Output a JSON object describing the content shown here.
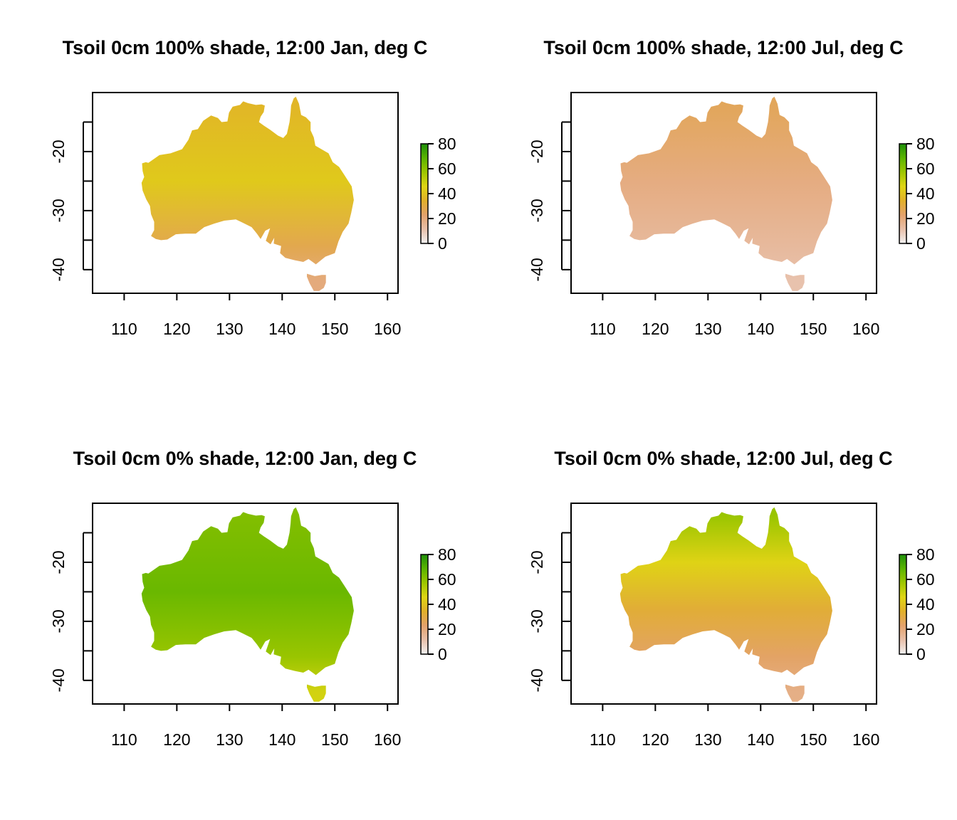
{
  "colors": {
    "scale_stops": [
      "#f2f2f2",
      "#e8c0aa",
      "#e3a26c",
      "#e1b02a",
      "#dfd514",
      "#9ec600",
      "#5bb400",
      "#1f8f0a"
    ],
    "background": "#ffffff"
  },
  "chart_data": [
    {
      "type": "heatmap",
      "title": "Tsoil 0cm 100% shade, 12:00 Jan, deg C",
      "x_ticks": [
        "110",
        "120",
        "130",
        "140",
        "150",
        "160"
      ],
      "y_ticks": [
        "-20",
        "-30",
        "-40"
      ],
      "xlim": [
        104,
        162
      ],
      "ylim": [
        -44,
        -10
      ],
      "colorbar": {
        "ticks": [
          "0",
          "20",
          "40",
          "60",
          "80"
        ],
        "range": [
          0,
          80
        ]
      },
      "field": {
        "base": 38,
        "gradient": [
          {
            "lat": -12,
            "value": 36
          },
          {
            "lat": -25,
            "value": 42
          },
          {
            "lat": -36,
            "value": 28
          },
          {
            "lat": -42,
            "value": 20
          }
        ]
      },
      "grid": false,
      "legend": "right"
    },
    {
      "type": "heatmap",
      "title": "Tsoil 0cm 100% shade, 12:00 Jul, deg C",
      "x_ticks": [
        "110",
        "120",
        "130",
        "140",
        "150",
        "160"
      ],
      "y_ticks": [
        "-20",
        "-30",
        "-40"
      ],
      "xlim": [
        104,
        162
      ],
      "ylim": [
        -44,
        -10
      ],
      "colorbar": {
        "ticks": [
          "0",
          "20",
          "40",
          "60",
          "80"
        ],
        "range": [
          0,
          80
        ]
      },
      "field": {
        "base": 22,
        "gradient": [
          {
            "lat": -12,
            "value": 26
          },
          {
            "lat": -25,
            "value": 19
          },
          {
            "lat": -36,
            "value": 14
          },
          {
            "lat": -42,
            "value": 11
          }
        ]
      },
      "grid": false,
      "legend": "right"
    },
    {
      "type": "heatmap",
      "title": "Tsoil 0cm 0% shade, 12:00 Jan, deg C",
      "x_ticks": [
        "110",
        "120",
        "130",
        "140",
        "150",
        "160"
      ],
      "y_ticks": [
        "-20",
        "-30",
        "-40"
      ],
      "xlim": [
        104,
        162
      ],
      "ylim": [
        -44,
        -10
      ],
      "colorbar": {
        "ticks": [
          "0",
          "20",
          "40",
          "60",
          "80"
        ],
        "range": [
          0,
          80
        ]
      },
      "field": {
        "base": 64,
        "gradient": [
          {
            "lat": -12,
            "value": 62
          },
          {
            "lat": -25,
            "value": 66
          },
          {
            "lat": -36,
            "value": 58
          },
          {
            "lat": -42,
            "value": 48
          }
        ]
      },
      "grid": false,
      "legend": "right"
    },
    {
      "type": "heatmap",
      "title": "Tsoil 0cm 0% shade, 12:00 Jul, deg C",
      "x_ticks": [
        "110",
        "120",
        "130",
        "140",
        "150",
        "160"
      ],
      "y_ticks": [
        "-20",
        "-30",
        "-40"
      ],
      "xlim": [
        104,
        162
      ],
      "ylim": [
        -44,
        -10
      ],
      "colorbar": {
        "ticks": [
          "0",
          "20",
          "40",
          "60",
          "80"
        ],
        "range": [
          0,
          80
        ]
      },
      "field": {
        "base": 35,
        "gradient": [
          {
            "lat": -12,
            "value": 58
          },
          {
            "lat": -20,
            "value": 45
          },
          {
            "lat": -28,
            "value": 32
          },
          {
            "lat": -36,
            "value": 24
          },
          {
            "lat": -42,
            "value": 18
          }
        ]
      },
      "grid": false,
      "legend": "right"
    }
  ]
}
